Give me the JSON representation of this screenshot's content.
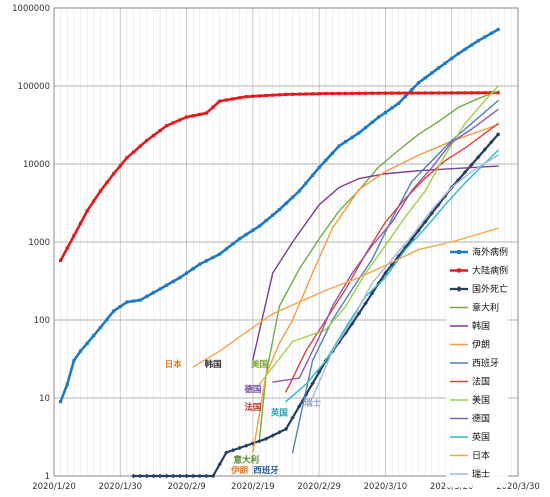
{
  "chart_data": {
    "type": "line",
    "scale": "log",
    "ylim": [
      1,
      1000000
    ],
    "xlim": [
      "2020/1/20",
      "2020/3/30"
    ],
    "grid": true,
    "legend_placement": "right",
    "y_ticks": [
      "1000000",
      "100000",
      "10000",
      "1000",
      "100",
      "10",
      "1"
    ],
    "x_ticks": [
      "2020/1/20",
      "2020/1/30",
      "2020/2/9",
      "2020/2/19",
      "2020/2/29",
      "2020/3/10",
      "2020/3/20",
      "2020/3/30"
    ],
    "series": [
      {
        "name": "海外病例",
        "color": "#1f7ac4",
        "marker": "square",
        "x": [
          "2020/1/21",
          "2020/1/22",
          "2020/1/23",
          "2020/1/24",
          "2020/1/25",
          "2020/1/27",
          "2020/1/29",
          "2020/1/31",
          "2020/2/2",
          "2020/2/5",
          "2020/2/8",
          "2020/2/11",
          "2020/2/14",
          "2020/2/17",
          "2020/2/20",
          "2020/2/23",
          "2020/2/26",
          "2020/2/29",
          "2020/3/3",
          "2020/3/6",
          "2020/3/9",
          "2020/3/12",
          "2020/3/15",
          "2020/3/18",
          "2020/3/21",
          "2020/3/24",
          "2020/3/27"
        ],
        "y": [
          9,
          15,
          30,
          40,
          50,
          80,
          130,
          170,
          180,
          250,
          350,
          520,
          700,
          1100,
          1600,
          2600,
          4500,
          9000,
          17000,
          25000,
          40000,
          60000,
          110000,
          170000,
          260000,
          380000,
          530000
        ]
      },
      {
        "name": "大陆病例",
        "color": "#e31a1c",
        "marker": "square",
        "x": [
          "2020/1/21",
          "2020/1/23",
          "2020/1/25",
          "2020/1/27",
          "2020/1/29",
          "2020/1/31",
          "2020/2/3",
          "2020/2/6",
          "2020/2/9",
          "2020/2/12",
          "2020/2/14",
          "2020/2/18",
          "2020/2/24",
          "2020/3/1",
          "2020/3/10",
          "2020/3/20",
          "2020/3/27"
        ],
        "y": [
          580,
          1200,
          2500,
          4500,
          7500,
          12000,
          20000,
          31000,
          40000,
          45000,
          64000,
          73000,
          78000,
          80000,
          81000,
          81500,
          82000
        ]
      },
      {
        "name": "国外死亡",
        "color": "#243f60",
        "marker": "diamond",
        "x": [
          "2020/2/1",
          "2020/2/13",
          "2020/2/15",
          "2020/2/21",
          "2020/2/24",
          "2020/3/1",
          "2020/3/5",
          "2020/3/10",
          "2020/3/15",
          "2020/3/20",
          "2020/3/27"
        ],
        "y": [
          1,
          1,
          2,
          3,
          4,
          30,
          90,
          400,
          1400,
          5000,
          24000
        ]
      },
      {
        "name": "意大利",
        "color": "#70ad47",
        "x": [
          "2020/2/20",
          "2020/2/21",
          "2020/2/23",
          "2020/2/26",
          "2020/2/29",
          "2020/3/3",
          "2020/3/6",
          "2020/3/9",
          "2020/3/12",
          "2020/3/15",
          "2020/3/18",
          "2020/3/21",
          "2020/3/24",
          "2020/3/27"
        ],
        "y": [
          3,
          20,
          150,
          450,
          1100,
          2500,
          4600,
          9200,
          15000,
          24000,
          35000,
          53000,
          69000,
          86000
        ]
      },
      {
        "name": "韩国",
        "color": "#7e3c92",
        "x": [
          "2020/2/19",
          "2020/2/22",
          "2020/2/25",
          "2020/2/29",
          "2020/3/3",
          "2020/3/6",
          "2020/3/10",
          "2020/3/15",
          "2020/3/20",
          "2020/3/27"
        ],
        "y": [
          31,
          400,
          1000,
          3000,
          5000,
          6500,
          7500,
          8200,
          8700,
          9400
        ]
      },
      {
        "name": "伊朗",
        "color": "#f59c3c",
        "x": [
          "2020/2/19",
          "2020/2/21",
          "2020/2/23",
          "2020/2/25",
          "2020/2/28",
          "2020/3/2",
          "2020/3/6",
          "2020/3/10",
          "2020/3/15",
          "2020/3/20",
          "2020/3/27"
        ],
        "y": [
          2,
          20,
          50,
          100,
          400,
          1500,
          4700,
          8000,
          13000,
          19600,
          32000
        ]
      },
      {
        "name": "西班牙",
        "color": "#4f81bd",
        "x": [
          "2020/2/25",
          "2020/2/28",
          "2020/3/2",
          "2020/3/5",
          "2020/3/8",
          "2020/3/11",
          "2020/3/14",
          "2020/3/17",
          "2020/3/20",
          "2020/3/23",
          "2020/3/27"
        ],
        "y": [
          2,
          30,
          100,
          250,
          600,
          2000,
          6000,
          11000,
          20000,
          33000,
          65000
        ]
      },
      {
        "name": "法国",
        "color": "#e0403c",
        "x": [
          "2020/2/24",
          "2020/2/27",
          "2020/3/1",
          "2020/3/4",
          "2020/3/7",
          "2020/3/10",
          "2020/3/13",
          "2020/3/16",
          "2020/3/19",
          "2020/3/22",
          "2020/3/27"
        ],
        "y": [
          12,
          40,
          100,
          250,
          700,
          1800,
          3600,
          6600,
          11000,
          16000,
          33000
        ]
      },
      {
        "name": "美国",
        "color": "#9bd04b",
        "x": [
          "2020/2/20",
          "2020/2/25",
          "2020/3/1",
          "2020/3/4",
          "2020/3/7",
          "2020/3/10",
          "2020/3/13",
          "2020/3/16",
          "2020/3/19",
          "2020/3/22",
          "2020/3/25",
          "2020/3/27"
        ],
        "y": [
          15,
          53,
          75,
          150,
          400,
          900,
          2100,
          4500,
          13000,
          33000,
          65000,
          100000
        ]
      },
      {
        "name": "德国",
        "color": "#8e5ab5",
        "x": [
          "2020/2/22",
          "2020/2/26",
          "2020/2/29",
          "2020/3/2",
          "2020/3/5",
          "2020/3/8",
          "2020/3/11",
          "2020/3/14",
          "2020/3/17",
          "2020/3/20",
          "2020/3/23",
          "2020/3/27"
        ],
        "y": [
          16,
          18,
          60,
          150,
          400,
          900,
          1800,
          4600,
          9000,
          19000,
          28000,
          50000
        ]
      },
      {
        "name": "英国",
        "color": "#2eb8c9",
        "x": [
          "2020/2/24",
          "2020/2/27",
          "2020/3/1",
          "2020/3/4",
          "2020/3/7",
          "2020/3/10",
          "2020/3/13",
          "2020/3/16",
          "2020/3/19",
          "2020/3/22",
          "2020/3/27"
        ],
        "y": [
          9,
          15,
          30,
          80,
          200,
          350,
          800,
          1500,
          3000,
          5700,
          15000
        ]
      },
      {
        "name": "日本",
        "color": "#f7a349",
        "x": [
          "2020/2/10",
          "2020/2/14",
          "2020/2/18",
          "2020/2/22",
          "2020/2/26",
          "2020/3/1",
          "2020/3/6",
          "2020/3/10",
          "2020/3/15",
          "2020/3/20",
          "2020/3/27"
        ],
        "y": [
          25,
          40,
          70,
          120,
          170,
          240,
          350,
          500,
          800,
          1000,
          1500
        ]
      },
      {
        "name": "瑞士",
        "color": "#a4b8e0",
        "x": [
          "2020/2/28",
          "2020/3/2",
          "2020/3/5",
          "2020/3/8",
          "2020/3/11",
          "2020/3/14",
          "2020/3/17",
          "2020/3/20",
          "2020/3/23",
          "2020/3/27"
        ],
        "y": [
          10,
          40,
          100,
          300,
          600,
          1200,
          2600,
          5000,
          8000,
          13000
        ]
      }
    ],
    "annotations": [
      {
        "text": "日本",
        "color": "#e07a20",
        "at": [
          "2020/2/7",
          25
        ]
      },
      {
        "text": "韩国",
        "color": "#333333",
        "at": [
          "2020/2/13",
          25
        ]
      },
      {
        "text": "美国",
        "color": "#7ea33a",
        "at": [
          "2020/2/20",
          25
        ]
      },
      {
        "text": "德国",
        "color": "#7a4fa0",
        "at": [
          "2020/2/19",
          12
        ]
      },
      {
        "text": "法国",
        "color": "#c0392b",
        "at": [
          "2020/2/19",
          7
        ]
      },
      {
        "text": "英国",
        "color": "#2a9fb0",
        "at": [
          "2020/2/23",
          6
        ]
      },
      {
        "text": "瑞士",
        "color": "#8aa3d0",
        "at": [
          "2020/2/28",
          8
        ]
      },
      {
        "text": "意大利",
        "color": "#4d8a2a",
        "at": [
          "2020/2/18",
          1.5
        ]
      },
      {
        "text": "伊朗",
        "color": "#e07a20",
        "at": [
          "2020/2/17",
          1.1
        ]
      },
      {
        "text": "西班牙",
        "color": "#2c5a8f",
        "at": [
          "2020/2/21",
          1.1
        ]
      }
    ]
  }
}
